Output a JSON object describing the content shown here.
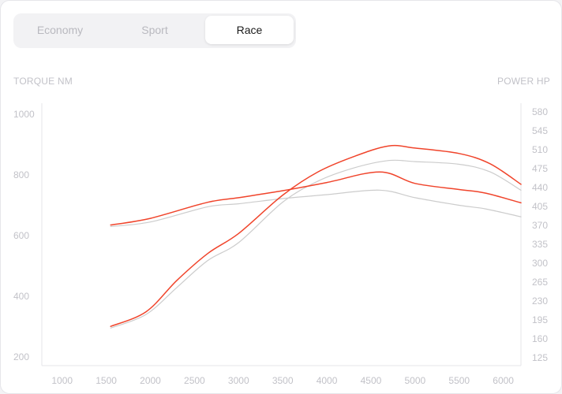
{
  "tabs": [
    {
      "label": "Economy",
      "active": false
    },
    {
      "label": "Sport",
      "active": false
    },
    {
      "label": "Race",
      "active": true
    }
  ],
  "colors": {
    "race": "#f0442b",
    "baseline": "#cccccc",
    "axis_text": "#c2c2c8",
    "axis_line": "#e6e6ea"
  },
  "chart_data": {
    "type": "line",
    "left_axis_label": "TORQUE NM",
    "right_axis_label": "POWER HP",
    "x_ticks": [
      1000,
      1500,
      2000,
      2500,
      3000,
      3500,
      4000,
      4500,
      5000,
      5500,
      6000
    ],
    "left_ticks": [
      200,
      400,
      600,
      800,
      1000
    ],
    "right_ticks": [
      125,
      160,
      195,
      230,
      265,
      300,
      335,
      370,
      405,
      440,
      475,
      510,
      545,
      580
    ],
    "xlim": [
      770,
      6200
    ],
    "left_ylim": [
      200,
      1000
    ],
    "right_ylim": [
      125,
      580
    ],
    "series": [
      {
        "axis": "left",
        "role": "torque-race",
        "color": "#f0442b",
        "x": [
          1550,
          2000,
          2650,
          3000,
          3500,
          4000,
          4600,
          5000,
          5500,
          5800,
          6200
        ],
        "y": [
          635,
          657,
          710,
          725,
          748,
          775,
          810,
          772,
          752,
          740,
          708
        ]
      },
      {
        "axis": "left",
        "role": "torque-stock",
        "color": "#cccccc",
        "x": [
          1550,
          2000,
          2650,
          3000,
          3500,
          4000,
          4600,
          5000,
          5500,
          5800,
          6200
        ],
        "y": [
          630,
          645,
          695,
          705,
          722,
          735,
          750,
          725,
          700,
          688,
          662
        ]
      },
      {
        "axis": "right",
        "role": "power-race",
        "color": "#f0442b",
        "x": [
          1550,
          1950,
          2300,
          2650,
          3000,
          3500,
          3900,
          4300,
          4700,
          5000,
          5500,
          5850,
          6200
        ],
        "y": [
          183,
          210,
          268,
          318,
          355,
          426,
          469,
          497,
          517,
          513,
          503,
          484,
          446
        ]
      },
      {
        "axis": "right",
        "role": "power-stock",
        "color": "#cccccc",
        "x": [
          1550,
          1950,
          2300,
          2650,
          3000,
          3500,
          3900,
          4300,
          4700,
          5000,
          5500,
          5850,
          6200
        ],
        "y": [
          180,
          205,
          255,
          305,
          338,
          413,
          452,
          476,
          490,
          488,
          483,
          469,
          435
        ]
      }
    ]
  }
}
